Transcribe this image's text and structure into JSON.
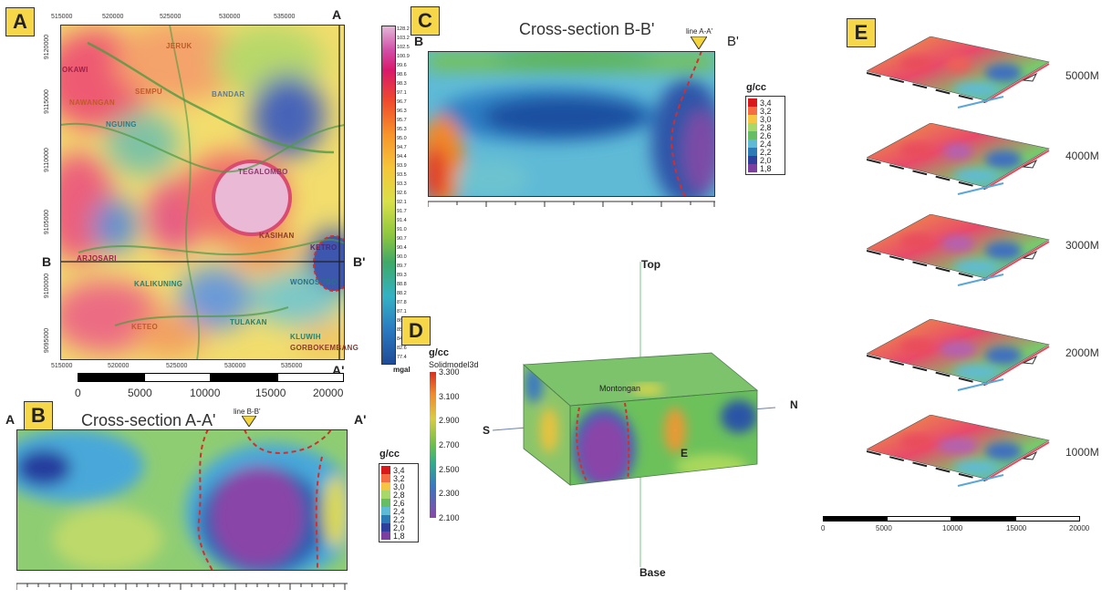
{
  "panels": {
    "a": {
      "letter": "A",
      "x_ticks": [
        "515000",
        "520000",
        "525000",
        "530000",
        "535000"
      ],
      "x_ticks_top": [
        "515000",
        "520000",
        "525000",
        "530000",
        "535000"
      ],
      "y_ticks": [
        "9120000",
        "9115000",
        "9110000",
        "9105000",
        "9100000",
        "9095000"
      ],
      "section_labels": {
        "a": "A",
        "a_prime": "A'",
        "b": "B",
        "b_prime": "B'"
      },
      "places": [
        "JERUK",
        "OKAWI",
        "SEMPU",
        "NAWANGAN",
        "BANDAR",
        "NGUING",
        "TEGALOMBO",
        "KASIHAN",
        "KETRO",
        "ARJOSARI",
        "KALIKUNING",
        "WONOSOBO",
        "KETEO",
        "TULAKAN",
        "KLUWIH",
        "GORBOKEMBANG"
      ],
      "colorbar_values": [
        "128.2",
        "103.2",
        "102.5",
        "100.9",
        "99.6",
        "98.6",
        "98.3",
        "97.1",
        "96.7",
        "96.3",
        "95.7",
        "95.3",
        "95.0",
        "94.7",
        "94.4",
        "93.9",
        "93.5",
        "93.3",
        "92.6",
        "92.1",
        "91.7",
        "91.4",
        "91.0",
        "90.7",
        "90.4",
        "90.0",
        "89.7",
        "89.3",
        "88.8",
        "88.2",
        "87.8",
        "87.1",
        "86.3",
        "85.3",
        "84.6",
        "82.6",
        "77.4"
      ],
      "colorbar_unit": "mgal",
      "scale_ticks": [
        "0",
        "5000",
        "10000",
        "15000",
        "20000"
      ]
    },
    "b": {
      "letter": "B",
      "title": "Cross-section A-A'",
      "marker": "line B-B'",
      "end_left": "A",
      "end_right": "A'",
      "unit": "g/cc",
      "legend": [
        "3,4",
        "3,2",
        "3,0",
        "2,8",
        "2,6",
        "2,4",
        "2,2",
        "2,0",
        "1,8"
      ]
    },
    "c": {
      "letter": "C",
      "title": "Cross-section B-B'",
      "marker": "line A-A'",
      "end_left": "B",
      "end_right": "B'",
      "unit": "g/cc",
      "legend": [
        "3,4",
        "3,2",
        "3,0",
        "2,8",
        "2,6",
        "2,4",
        "2,2",
        "2,0",
        "1,8"
      ]
    },
    "d": {
      "letter": "D",
      "unit": "g/cc",
      "subtitle": "Solidmodel3d",
      "legend": [
        "3.300",
        "3.100",
        "2.900",
        "2.700",
        "2.500",
        "2.300",
        "2.100"
      ],
      "axes": {
        "top": "Top",
        "base": "Base",
        "s": "S",
        "n": "N",
        "e": "E"
      },
      "feature": "Montongan"
    },
    "e": {
      "letter": "E",
      "depths": [
        "5000M",
        "4000M",
        "3000M",
        "2000M",
        "1000M"
      ],
      "scale_ticks": [
        "0",
        "5000",
        "10000",
        "15000",
        "20000"
      ]
    }
  },
  "colors": {
    "legend_scale": [
      "#d7191c",
      "#f46d43",
      "#f6c542",
      "#a6d96a",
      "#66bd63",
      "#5fbad6",
      "#2c7bb6",
      "#2f3f9c",
      "#7b3fa0"
    ]
  }
}
